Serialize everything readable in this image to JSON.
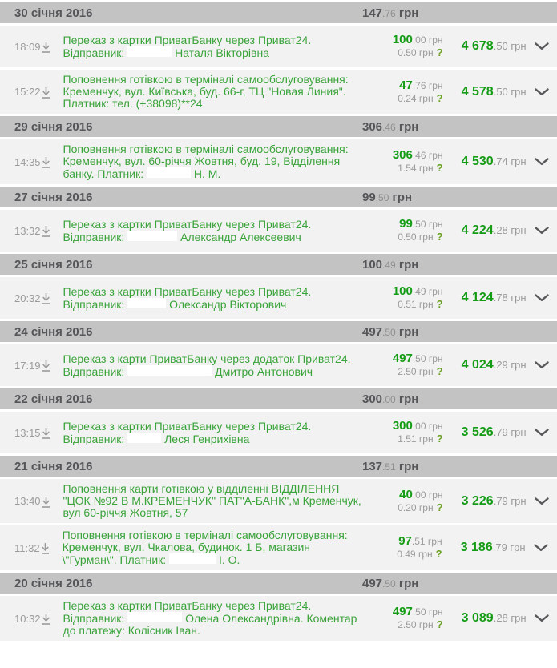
{
  "app": "privat24-transaction-history",
  "currency": "грн",
  "colors": {
    "accent_green": "#159c15",
    "text_green": "#3aa33a",
    "muted_gray": "#9b9b9b",
    "header_bg": "#c3c3c3",
    "header_text": "#555659",
    "row_bg": "#f2f2f2",
    "fee_help_green": "#6aa126"
  },
  "icons": {
    "row_icon": "download-icon",
    "expand_icon": "chevron-down-icon",
    "fee_help": "?"
  },
  "groups": [
    {
      "date": "30 січня 2016",
      "total": {
        "int": "147",
        "dec": ".76"
      },
      "transactions": [
        {
          "time": "18:09",
          "desc": [
            {
              "text": "Переказ з картки ПриватБанку через Приват24. Відправник:"
            },
            {
              "redact": 55
            },
            {
              "text": "Наталя Вікторівна"
            }
          ],
          "amount": {
            "int": "100",
            "dec": ".00"
          },
          "fee": "0.50",
          "balance": {
            "int": "4 678",
            "dec": ".50"
          }
        },
        {
          "time": "15:22",
          "desc": [
            {
              "text": "Поповнення готівкою в терміналі самообслуговування: Кременчук, вул. Київська, буд. 66-г, ТЦ \"Новая Линия\". Платник: тел. (+38098)**24"
            }
          ],
          "amount": {
            "int": "47",
            "dec": ".76"
          },
          "fee": "0.24",
          "balance": {
            "int": "4 578",
            "dec": ".50"
          }
        }
      ]
    },
    {
      "date": "29 січня 2016",
      "total": {
        "int": "306",
        "dec": ".46"
      },
      "transactions": [
        {
          "time": "14:35",
          "desc": [
            {
              "text": "Поповнення готівкою в терміналі самообслуговування: Кременчук, вул. 60-річчя Жовтня, буд. 19, Відділення банку. Платник:"
            },
            {
              "redact": 55
            },
            {
              "text": "Н. М."
            }
          ],
          "amount": {
            "int": "306",
            "dec": ".46"
          },
          "fee": "1.54",
          "balance": {
            "int": "4 530",
            "dec": ".74"
          }
        }
      ]
    },
    {
      "date": "27 січня 2016",
      "total": {
        "int": "99",
        "dec": ".50"
      },
      "transactions": [
        {
          "time": "13:32",
          "desc": [
            {
              "text": "Переказ з картки ПриватБанку через Приват24. Відправник:"
            },
            {
              "redact": 62
            },
            {
              "text": "Александр Алексеевич"
            }
          ],
          "amount": {
            "int": "99",
            "dec": ".50"
          },
          "fee": "0.50",
          "balance": {
            "int": "4 224",
            "dec": ".28"
          }
        }
      ]
    },
    {
      "date": "25 січня 2016",
      "total": {
        "int": "100",
        "dec": ".49"
      },
      "transactions": [
        {
          "time": "20:32",
          "desc": [
            {
              "text": "Переказ з картки ПриватБанку через Приват24. Відправник:"
            },
            {
              "redact": 48
            },
            {
              "text": "Олександр Вікторович"
            }
          ],
          "amount": {
            "int": "100",
            "dec": ".49"
          },
          "fee": "0.51",
          "balance": {
            "int": "4 124",
            "dec": ".78"
          }
        }
      ]
    },
    {
      "date": "24 січня 2016",
      "total": {
        "int": "497",
        "dec": ".50"
      },
      "transactions": [
        {
          "time": "17:19",
          "desc": [
            {
              "text": "Переказ з карти ПриватБанку через додаток Приват24. Відправник:"
            },
            {
              "redact": 105
            },
            {
              "text": "Дмитро Антонович"
            }
          ],
          "amount": {
            "int": "497",
            "dec": ".50"
          },
          "fee": "2.50",
          "balance": {
            "int": "4 024",
            "dec": ".29"
          }
        }
      ]
    },
    {
      "date": "22 січня 2016",
      "total": {
        "int": "300",
        "dec": ".00"
      },
      "transactions": [
        {
          "time": "13:15",
          "desc": [
            {
              "text": "Переказ з картки ПриватБанку через Приват24. Відправник:"
            },
            {
              "redact": 42
            },
            {
              "text": "Леся Генрихівна"
            }
          ],
          "amount": {
            "int": "300",
            "dec": ".00"
          },
          "fee": "1.51",
          "balance": {
            "int": "3 526",
            "dec": ".79"
          }
        }
      ]
    },
    {
      "date": "21 січня 2016",
      "total": {
        "int": "137",
        "dec": ".51"
      },
      "transactions": [
        {
          "time": "13:40",
          "desc": [
            {
              "text": "Поповнення карти готівкою у відділенні ВІДДІЛЕННЯ \"ЦОК №92 В М.КРЕМЕНЧУК\" ПАТ\"А-БАНК\",м Кременчук, вул 60-річчя Жовтня, 57"
            }
          ],
          "amount": {
            "int": "40",
            "dec": ".00"
          },
          "fee": "0.20",
          "balance": {
            "int": "3 226",
            "dec": ".79"
          }
        },
        {
          "time": "11:32",
          "desc": [
            {
              "text": "Поповнення готівкою в терміналі самообслуговування: Кременчук, вул. Чкалова, будинок. 1 Б, магазин \\\"Гурман\\\". Платник:"
            },
            {
              "redact": 58
            },
            {
              "text": "І. О."
            }
          ],
          "amount": {
            "int": "97",
            "dec": ".51"
          },
          "fee": "0.49",
          "balance": {
            "int": "3 186",
            "dec": ".79"
          }
        }
      ]
    },
    {
      "date": "20 січня 2016",
      "total": {
        "int": "497",
        "dec": ".50"
      },
      "transactions": [
        {
          "time": "10:32",
          "desc": [
            {
              "text": "Переказ з картки ПриватБанку через Приват24. Відправник:"
            },
            {
              "redact": 68
            },
            {
              "text": "Олена Олександрівна. Коментар до платежу: Колісник Іван."
            }
          ],
          "amount": {
            "int": "497",
            "dec": ".50"
          },
          "fee": "2.50",
          "balance": {
            "int": "3 089",
            "dec": ".28"
          }
        }
      ]
    }
  ]
}
